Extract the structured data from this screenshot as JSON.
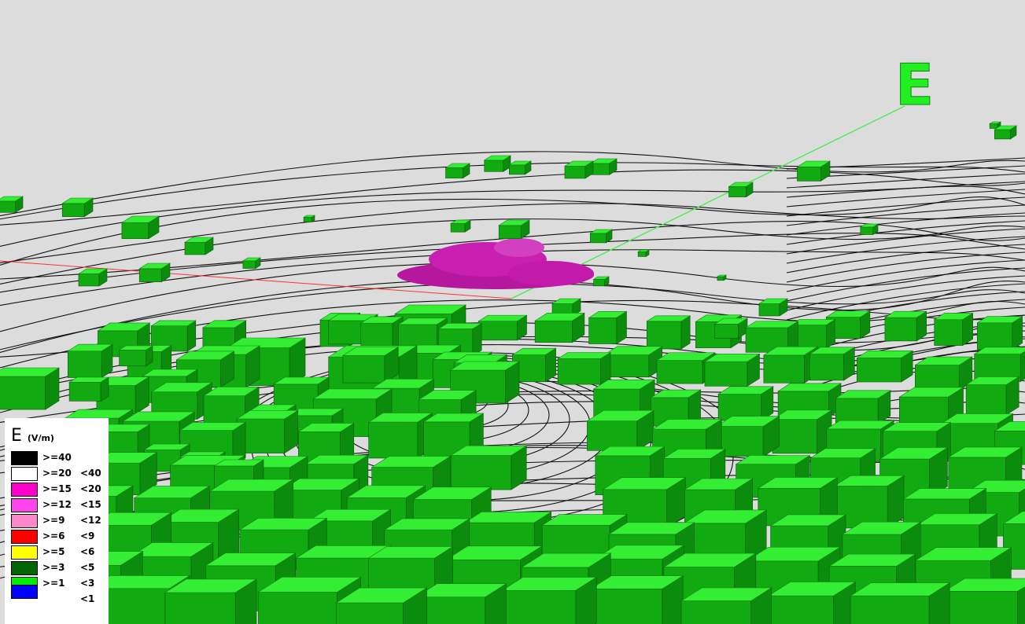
{
  "scene": {
    "axis_label": "E",
    "colors": {
      "background": "#dcdcdc",
      "building_top": "#33ee33",
      "building_side": "#11aa11",
      "contour_lines": "#111111",
      "field_blob": "#c81fb0",
      "axis_line": "#44ee44",
      "secondary_axis": "#ff3333"
    }
  },
  "legend": {
    "title": "E",
    "unit": "(V/m)",
    "rows": [
      {
        "ge": ">=40",
        "lt": "",
        "color": "#000000"
      },
      {
        "ge": ">=20",
        "lt": "<40",
        "color": "#ffffff"
      },
      {
        "ge": ">=15",
        "lt": "<20",
        "color": "#ff00cc"
      },
      {
        "ge": ">=12",
        "lt": "<15",
        "color": "#ff44ee"
      },
      {
        "ge": ">=9",
        "lt": "<12",
        "color": "#ff88cc"
      },
      {
        "ge": ">=6",
        "lt": "<9",
        "color": "#ff0000"
      },
      {
        "ge": ">=5",
        "lt": "<6",
        "color": "#ffff00"
      },
      {
        "ge": ">=3",
        "lt": "<5",
        "color": "#006600"
      },
      {
        "ge": ">=1",
        "lt": "<3",
        "color": "#00ee00"
      },
      {
        "ge": "",
        "lt": "<1",
        "color": "#0000ff"
      }
    ]
  }
}
